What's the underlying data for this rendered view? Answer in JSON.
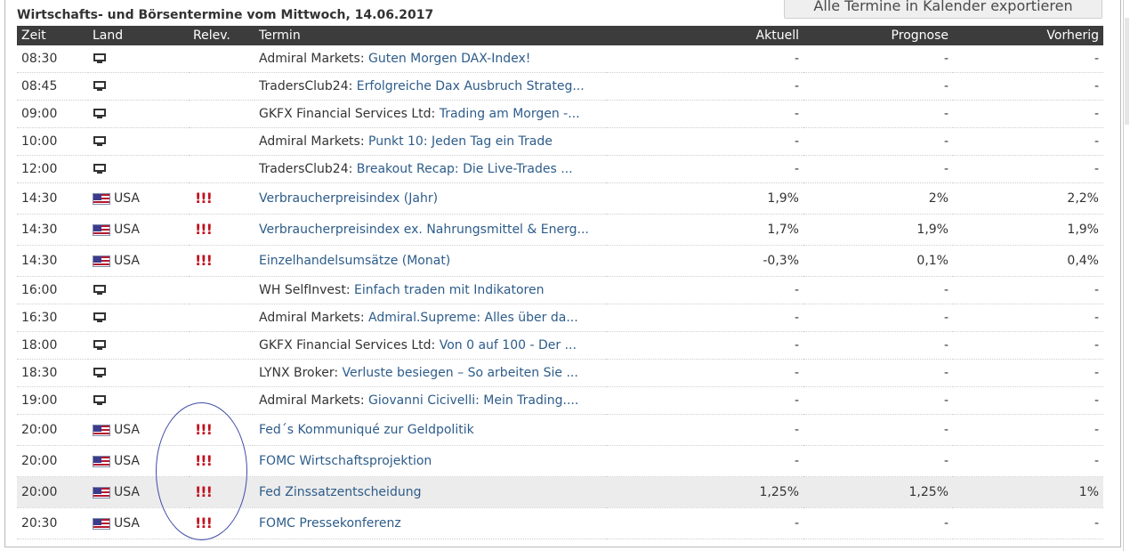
{
  "page": {
    "title": "Wirtschafts- und Börsentermine vom Mittwoch, 14.06.2017",
    "export_button": "Alle Termine in Kalender exportieren"
  },
  "columns": {
    "zeit": "Zeit",
    "land": "Land",
    "relev": "Relev.",
    "termin": "Termin",
    "aktuell": "Aktuell",
    "prognose": "Prognose",
    "vorherig": "Vorherig"
  },
  "rows": [
    {
      "zeit": "08:30",
      "icon": "computer-icon",
      "land": "",
      "relevance": "",
      "provider": "Admiral Markets:",
      "termin": "Guten Morgen DAX-Index!",
      "aktuell": "-",
      "prognose": "-",
      "vorherig": "-"
    },
    {
      "zeit": "08:45",
      "icon": "computer-icon",
      "land": "",
      "relevance": "",
      "provider": "TradersClub24:",
      "termin": "Erfolgreiche Dax Ausbruch Strateg...",
      "aktuell": "-",
      "prognose": "-",
      "vorherig": "-"
    },
    {
      "zeit": "09:00",
      "icon": "computer-icon",
      "land": "",
      "relevance": "",
      "provider": "GKFX Financial Services Ltd:",
      "termin": "Trading am Morgen -...",
      "aktuell": "-",
      "prognose": "-",
      "vorherig": "-"
    },
    {
      "zeit": "10:00",
      "icon": "computer-icon",
      "land": "",
      "relevance": "",
      "provider": "Admiral Markets:",
      "termin": "Punkt 10: Jeden Tag ein Trade",
      "aktuell": "-",
      "prognose": "-",
      "vorherig": "-"
    },
    {
      "zeit": "12:00",
      "icon": "computer-icon",
      "land": "",
      "relevance": "",
      "provider": "TradersClub24:",
      "termin": "Breakout Recap: Die Live-Trades ...",
      "aktuell": "-",
      "prognose": "-",
      "vorherig": "-"
    },
    {
      "zeit": "14:30",
      "icon": "us-flag-icon",
      "land": "USA",
      "relevance": "!!!",
      "provider": "",
      "termin": "Verbraucherpreisindex (Jahr)",
      "aktuell": "1,9%",
      "prognose": "2%",
      "vorherig": "2,2%"
    },
    {
      "zeit": "14:30",
      "icon": "us-flag-icon",
      "land": "USA",
      "relevance": "!!!",
      "provider": "",
      "termin": "Verbraucherpreisindex ex. Nahrungsmittel & Energ...",
      "aktuell": "1,7%",
      "prognose": "1,9%",
      "vorherig": "1,9%"
    },
    {
      "zeit": "14:30",
      "icon": "us-flag-icon",
      "land": "USA",
      "relevance": "!!!",
      "provider": "",
      "termin": "Einzelhandelsumsätze (Monat)",
      "aktuell": "-0,3%",
      "prognose": "0,1%",
      "vorherig": "0,4%"
    },
    {
      "zeit": "16:00",
      "icon": "computer-icon",
      "land": "",
      "relevance": "",
      "provider": "WH SelfInvest:",
      "termin": "Einfach traden mit Indikatoren",
      "aktuell": "-",
      "prognose": "-",
      "vorherig": "-"
    },
    {
      "zeit": "16:30",
      "icon": "computer-icon",
      "land": "",
      "relevance": "",
      "provider": "Admiral Markets:",
      "termin": "Admiral.Supreme: Alles über da...",
      "aktuell": "-",
      "prognose": "-",
      "vorherig": "-"
    },
    {
      "zeit": "18:00",
      "icon": "computer-icon",
      "land": "",
      "relevance": "",
      "provider": "GKFX Financial Services Ltd:",
      "termin": "Von 0 auf 100 - Der ...",
      "aktuell": "-",
      "prognose": "-",
      "vorherig": "-"
    },
    {
      "zeit": "18:30",
      "icon": "computer-icon",
      "land": "",
      "relevance": "",
      "provider": "LYNX Broker:",
      "termin": "Verluste besiegen – So arbeiten Sie ...",
      "aktuell": "-",
      "prognose": "-",
      "vorherig": "-"
    },
    {
      "zeit": "19:00",
      "icon": "computer-icon",
      "land": "",
      "relevance": "",
      "provider": "Admiral Markets:",
      "termin": "Giovanni Cicivelli: Mein Trading....",
      "aktuell": "-",
      "prognose": "-",
      "vorherig": "-"
    },
    {
      "zeit": "20:00",
      "icon": "us-flag-icon",
      "land": "USA",
      "relevance": "!!!",
      "provider": "",
      "termin": "Fed´s Kommuniqué zur Geldpolitik",
      "aktuell": "-",
      "prognose": "-",
      "vorherig": "-"
    },
    {
      "zeit": "20:00",
      "icon": "us-flag-icon",
      "land": "USA",
      "relevance": "!!!",
      "provider": "",
      "termin": "FOMC Wirtschaftsprojektion",
      "aktuell": "-",
      "prognose": "-",
      "vorherig": "-"
    },
    {
      "zeit": "20:00",
      "icon": "us-flag-icon",
      "land": "USA",
      "relevance": "!!!",
      "provider": "",
      "termin": "Fed Zinssatzentscheidung",
      "aktuell": "1,25%",
      "prognose": "1,25%",
      "vorherig": "1%",
      "highlighted": true
    },
    {
      "zeit": "20:30",
      "icon": "us-flag-icon",
      "land": "USA",
      "relevance": "!!!",
      "provider": "",
      "termin": "FOMC Pressekonferenz",
      "aktuell": "-",
      "prognose": "-",
      "vorherig": "-"
    }
  ],
  "colors": {
    "header_bg": "#3c3c3c",
    "link": "#2d5c8a",
    "relevance": "#c0121f",
    "annotation_ellipse": "#3d4aa8",
    "highlight_row": "#ececec"
  }
}
